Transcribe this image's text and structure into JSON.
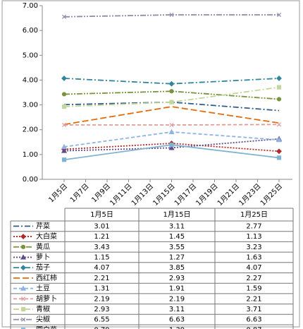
{
  "chart_data": {
    "type": "line",
    "categories": [
      "1月5日",
      "1月15日",
      "1月25日"
    ],
    "axis_labels": [
      "1月5日",
      "1月7日",
      "1月9日",
      "1月11日",
      "1月13日",
      "1月15日",
      "1月17日",
      "1月19日",
      "1月21日",
      "1月23日",
      "1月25日"
    ],
    "ylim": [
      0,
      7
    ],
    "yticks": [
      {
        "value": 0,
        "label": "0.00"
      },
      {
        "value": 1,
        "label": "1.00"
      },
      {
        "value": 2,
        "label": "2.00"
      },
      {
        "value": 3,
        "label": "3.00"
      },
      {
        "value": 4,
        "label": "4.00"
      },
      {
        "value": 5,
        "label": "5.00"
      },
      {
        "value": 6,
        "label": "6.00"
      },
      {
        "value": 7,
        "label": "7.00"
      }
    ],
    "grid": false,
    "series": [
      {
        "name": "芹菜",
        "color": "#2f5b8c",
        "dash": "dash-dot",
        "marker": "none",
        "values": [
          3.01,
          3.11,
          2.77
        ]
      },
      {
        "name": "大白菜",
        "color": "#b22a2a",
        "dash": "dot",
        "marker": "diamond",
        "values": [
          1.21,
          1.45,
          1.13
        ]
      },
      {
        "name": "黄瓜",
        "color": "#77933c",
        "dash": "dash-dot-dot",
        "marker": "circle",
        "values": [
          3.43,
          3.55,
          3.23
        ]
      },
      {
        "name": "萝卜",
        "color": "#5f4b8b",
        "dash": "dot",
        "marker": "triangle",
        "values": [
          1.15,
          1.27,
          1.63
        ]
      },
      {
        "name": "茄子",
        "color": "#31859c",
        "dash": "dash-dot",
        "marker": "diamond",
        "values": [
          4.07,
          3.85,
          4.07
        ]
      },
      {
        "name": "西红柿",
        "color": "#e46c0a",
        "dash": "long-dash",
        "marker": "none",
        "values": [
          2.21,
          2.93,
          2.27
        ]
      },
      {
        "name": "土豆",
        "color": "#8eb4e3",
        "dash": "dash",
        "marker": "triangle",
        "values": [
          1.31,
          1.91,
          1.59
        ]
      },
      {
        "name": "胡萝卜",
        "color": "#e49a9a",
        "dash": "dash",
        "marker": "x",
        "values": [
          2.19,
          2.19,
          2.21
        ]
      },
      {
        "name": "青椒",
        "color": "#c3d69b",
        "dash": "dash-dot",
        "marker": "square",
        "values": [
          2.93,
          3.11,
          3.71
        ]
      },
      {
        "name": "尖椒",
        "color": "#8c8cab",
        "dash": "dash-dot-dot",
        "marker": "x",
        "values": [
          6.55,
          6.63,
          6.63
        ]
      },
      {
        "name": "圆白菜",
        "color": "#7fb3d1",
        "dash": "solid",
        "marker": "square",
        "values": [
          0.79,
          1.39,
          0.87
        ]
      }
    ]
  }
}
